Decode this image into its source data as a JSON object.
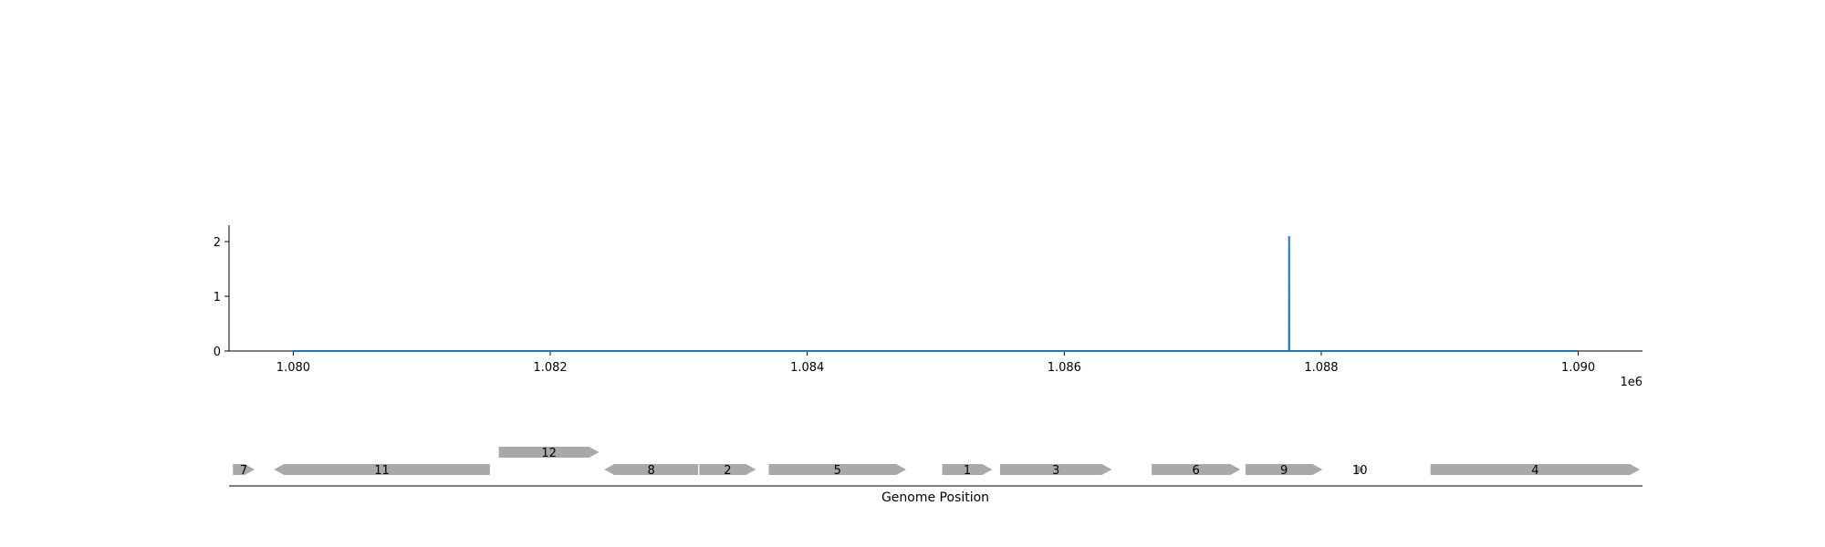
{
  "chart_data": [
    {
      "type": "line",
      "xlim": [
        1079500,
        1090500
      ],
      "ylim": [
        0,
        2.3
      ],
      "x_ticks": [
        1080000,
        1082000,
        1084000,
        1086000,
        1088000,
        1090000
      ],
      "x_tick_labels": [
        "1.080",
        "1.082",
        "1.084",
        "1.086",
        "1.088",
        "1.090"
      ],
      "x_offset_label": "1e6",
      "y_ticks": [
        0,
        1,
        2
      ],
      "y_tick_labels": [
        "0",
        "1",
        "2"
      ],
      "series": [
        {
          "color": "#1f77b4",
          "points": [
            [
              1080000,
              0
            ],
            [
              1087749,
              0
            ],
            [
              1087750,
              2.1
            ],
            [
              1087751,
              0
            ],
            [
              1090000,
              0
            ]
          ]
        }
      ],
      "grid": false
    },
    {
      "type": "gene_track",
      "xlabel": "Genome Position",
      "feature_color": "#a9a9a9",
      "features": [
        {
          "label": "7",
          "start": 1079530,
          "end": 1079700,
          "strand": "+",
          "row": 0
        },
        {
          "label": "11",
          "start": 1079850,
          "end": 1081530,
          "strand": "-",
          "row": 0
        },
        {
          "label": "12",
          "start": 1081600,
          "end": 1082380,
          "strand": "+",
          "row": 1
        },
        {
          "label": "8",
          "start": 1082420,
          "end": 1083150,
          "strand": "-",
          "row": 0
        },
        {
          "label": "2",
          "start": 1083160,
          "end": 1083600,
          "strand": "+",
          "row": 0
        },
        {
          "label": "5",
          "start": 1083700,
          "end": 1084770,
          "strand": "+",
          "row": 0
        },
        {
          "label": "1",
          "start": 1085050,
          "end": 1085440,
          "strand": "+",
          "row": 0
        },
        {
          "label": "3",
          "start": 1085500,
          "end": 1086370,
          "strand": "+",
          "row": 0
        },
        {
          "label": "6",
          "start": 1086680,
          "end": 1087370,
          "strand": "+",
          "row": 0
        },
        {
          "label": "9",
          "start": 1087410,
          "end": 1088010,
          "strand": "+",
          "row": 0
        },
        {
          "label": "10",
          "start": 1088270,
          "end": 1088330,
          "strand": "+",
          "row": 0
        },
        {
          "label": "4",
          "start": 1088850,
          "end": 1090480,
          "strand": "+",
          "row": 0
        }
      ]
    }
  ]
}
